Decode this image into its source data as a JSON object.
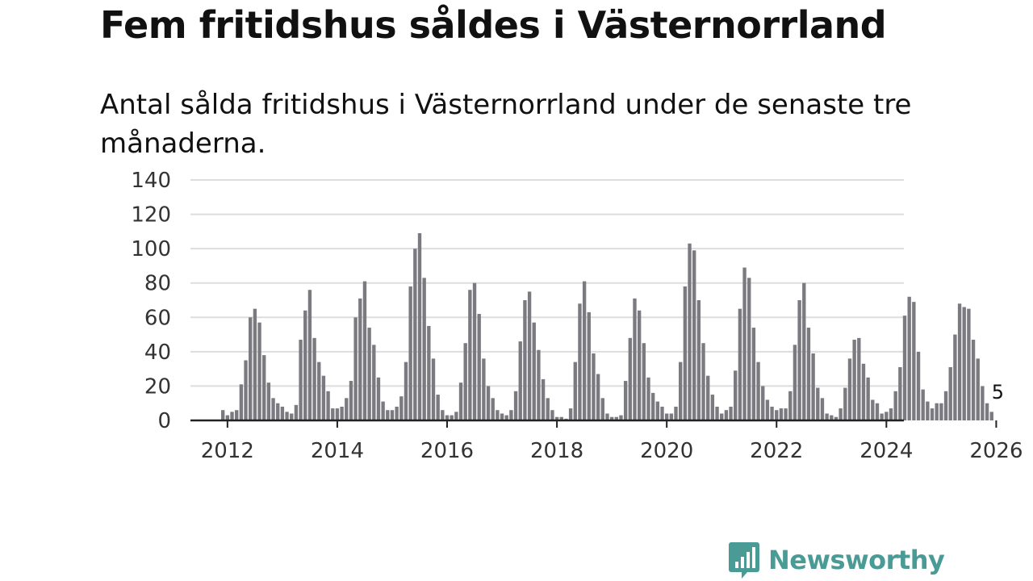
{
  "title": "Fem fritidshus såldes i Västernorrland",
  "subtitle": "Antal sålda fritidshus i Västernorrland under de senaste tre månaderna.",
  "brand": {
    "name": "Newsworthy",
    "icon": "newsworthy-logo-icon",
    "color": "#4a9a95"
  },
  "colors": {
    "bar": "#7b7a80",
    "highlight": "#2bb3a5",
    "grid": "#dddddd",
    "axis": "#222222"
  },
  "chart_data": {
    "type": "bar",
    "title": "",
    "xlabel": "",
    "ylabel": "",
    "ylim": [
      0,
      140
    ],
    "yticks": [
      0,
      20,
      40,
      60,
      80,
      100,
      120,
      140
    ],
    "xticks": [
      "2012",
      "2014",
      "2016",
      "2018",
      "2020",
      "2022",
      "2024",
      "2026"
    ],
    "grid": true,
    "x_start": "2011-12",
    "x_end": "2026-01",
    "annotation": {
      "category": "2026-01",
      "label": "5"
    },
    "highlight": "2026-01",
    "series": [
      {
        "values": [
          6,
          3,
          5,
          6,
          21,
          35,
          60,
          65,
          57,
          38,
          22,
          13,
          10,
          8,
          5,
          4,
          9,
          47,
          64,
          76,
          48,
          34,
          26,
          17,
          7,
          7,
          8,
          13,
          23,
          60,
          71,
          81,
          54,
          44,
          25,
          11,
          6,
          6,
          8,
          14,
          34,
          78,
          100,
          109,
          83,
          55,
          36,
          15,
          6,
          3,
          3,
          5,
          22,
          45,
          76,
          80,
          62,
          36,
          20,
          13,
          6,
          4,
          3,
          6,
          17,
          46,
          70,
          75,
          57,
          41,
          24,
          13,
          6,
          2,
          2,
          1,
          7,
          34,
          68,
          81,
          63,
          39,
          27,
          13,
          4,
          2,
          2,
          3,
          23,
          48,
          71,
          64,
          45,
          25,
          16,
          11,
          8,
          4,
          4,
          8,
          34,
          78,
          103,
          99,
          70,
          45,
          26,
          15,
          8,
          4,
          6,
          8,
          29,
          65,
          89,
          83,
          54,
          34,
          20,
          12,
          8,
          6,
          7,
          7,
          17,
          44,
          70,
          80,
          54,
          39,
          19,
          13,
          4,
          3,
          2,
          7,
          19,
          36,
          47,
          48,
          33,
          25,
          12,
          10,
          4,
          5,
          7,
          17,
          31,
          61,
          72,
          69,
          40,
          18,
          11,
          7,
          10,
          10,
          17,
          31,
          50,
          68,
          66,
          65,
          47,
          36,
          20,
          10,
          5
        ]
      }
    ]
  }
}
